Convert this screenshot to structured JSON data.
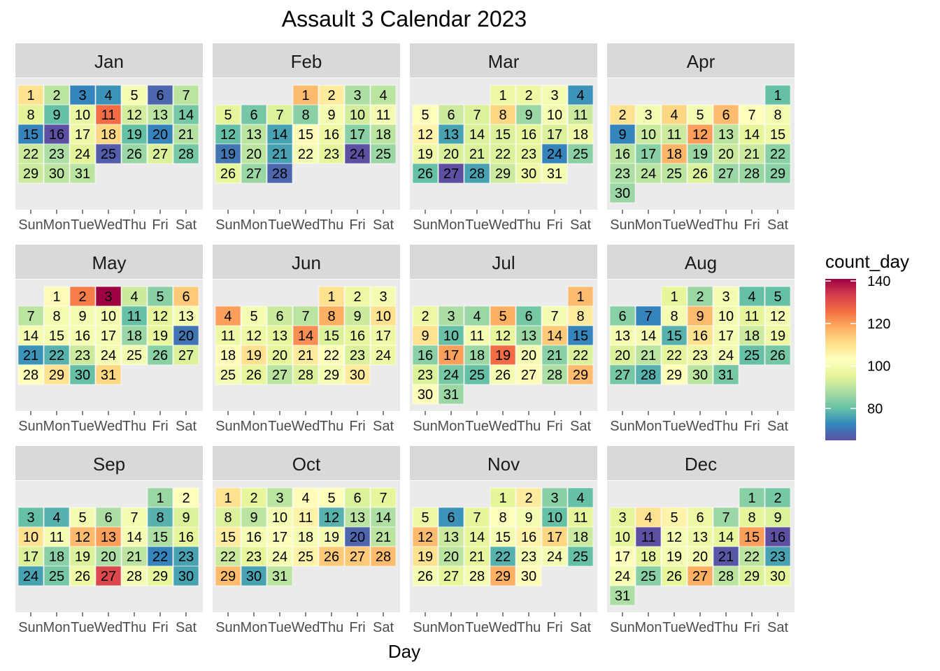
{
  "chart_data": {
    "type": "heatmap",
    "title": "Assault 3 Calendar 2023",
    "xlabel": "Day",
    "ylabel": "",
    "weekdays": [
      "Sun",
      "Mon",
      "Tue",
      "Wed",
      "Thu",
      "Fri",
      "Sat"
    ],
    "legend": {
      "title": "count_day",
      "position": "right",
      "range": [
        65,
        141
      ],
      "ticks": [
        80,
        100,
        120,
        140
      ],
      "palette": [
        "#5E4FA2",
        "#3288BD",
        "#66C2A5",
        "#ABDDA4",
        "#E6F598",
        "#FFFFBF",
        "#FEE08B",
        "#FDAE61",
        "#F46D43",
        "#D53E4F",
        "#9E0142"
      ]
    },
    "months": [
      {
        "name": "Jan",
        "first_weekday": 0,
        "values": [
          110,
          90,
          72,
          74,
          100,
          68,
          90,
          95,
          80,
          97,
          126,
          93,
          90,
          82,
          72,
          64,
          98,
          112,
          80,
          72,
          89,
          92,
          88,
          95,
          67,
          86,
          94,
          82,
          92,
          90,
          90
        ]
      },
      {
        "name": "Feb",
        "first_weekday": 3,
        "values": [
          116,
          108,
          88,
          90,
          96,
          82,
          94,
          84,
          100,
          93,
          100,
          80,
          90,
          76,
          104,
          98,
          84,
          90,
          70,
          90,
          76,
          100,
          96,
          65,
          86,
          96,
          86,
          68
        ]
      },
      {
        "name": "Mar",
        "first_weekday": 3,
        "values": [
          98,
          98,
          100,
          74,
          102,
          92,
          94,
          112,
          86,
          100,
          92,
          106,
          76,
          94,
          94,
          96,
          94,
          98,
          98,
          94,
          94,
          94,
          96,
          72,
          84,
          80,
          64,
          76,
          92,
          98,
          100
        ]
      },
      {
        "name": "Apr",
        "first_weekday": 6,
        "values": [
          80,
          110,
          100,
          112,
          100,
          116,
          102,
          100,
          72,
          92,
          92,
          120,
          90,
          96,
          98,
          90,
          84,
          117,
          86,
          92,
          92,
          84,
          88,
          90,
          90,
          94,
          86,
          86,
          84,
          86
        ]
      },
      {
        "name": "May",
        "first_weekday": 1,
        "values": [
          104,
          124,
          142,
          92,
          84,
          114,
          90,
          100,
          100,
          100,
          80,
          96,
          100,
          100,
          100,
          100,
          100,
          86,
          96,
          70,
          74,
          78,
          92,
          100,
          100,
          84,
          94,
          102,
          110,
          80,
          112
        ]
      },
      {
        "name": "Jun",
        "first_weekday": 4,
        "values": [
          110,
          98,
          100,
          120,
          100,
          92,
          90,
          118,
          92,
          110,
          98,
          98,
          96,
          122,
          94,
          96,
          98,
          104,
          110,
          96,
          108,
          102,
          94,
          98,
          100,
          96,
          90,
          94,
          100,
          108
        ]
      },
      {
        "name": "Jul",
        "first_weekday": 6,
        "values": [
          116,
          98,
          88,
          86,
          118,
          82,
          100,
          108,
          110,
          80,
          100,
          96,
          86,
          114,
          72,
          84,
          120,
          86,
          126,
          100,
          84,
          94,
          94,
          82,
          80,
          100,
          104,
          88,
          116,
          102,
          86
        ]
      },
      {
        "name": "Aug",
        "first_weekday": 2,
        "values": [
          96,
          86,
          100,
          80,
          80,
          84,
          72,
          100,
          116,
          100,
          96,
          100,
          100,
          100,
          78,
          110,
          100,
          92,
          98,
          94,
          90,
          96,
          98,
          100,
          80,
          82,
          82,
          78,
          102,
          90,
          82
        ]
      },
      {
        "name": "Sep",
        "first_weekday": 5,
        "values": [
          86,
          102,
          80,
          78,
          100,
          88,
          100,
          78,
          94,
          110,
          100,
          116,
          120,
          100,
          88,
          96,
          94,
          84,
          94,
          88,
          90,
          72,
          76,
          76,
          82,
          98,
          132,
          100,
          96,
          76
        ]
      },
      {
        "name": "Oct",
        "first_weekday": 0,
        "values": [
          110,
          96,
          90,
          104,
          102,
          94,
          96,
          94,
          90,
          100,
          106,
          78,
          90,
          88,
          108,
          100,
          102,
          100,
          100,
          68,
          90,
          92,
          96,
          100,
          106,
          114,
          114,
          116,
          116,
          76,
          90
        ]
      },
      {
        "name": "Nov",
        "first_weekday": 3,
        "values": [
          96,
          108,
          84,
          80,
          98,
          74,
          96,
          102,
          100,
          80,
          96,
          116,
          92,
          96,
          100,
          106,
          112,
          92,
          110,
          90,
          96,
          78,
          100,
          100,
          80,
          100,
          96,
          100,
          118,
          104
        ]
      },
      {
        "name": "Dec",
        "first_weekday": 5,
        "values": [
          84,
          82,
          96,
          110,
          106,
          98,
          86,
          96,
          94,
          96,
          64,
          100,
          98,
          96,
          120,
          64,
          102,
          96,
          100,
          100,
          66,
          90,
          76,
          100,
          84,
          96,
          118,
          90,
          94,
          96,
          88
        ]
      }
    ]
  }
}
